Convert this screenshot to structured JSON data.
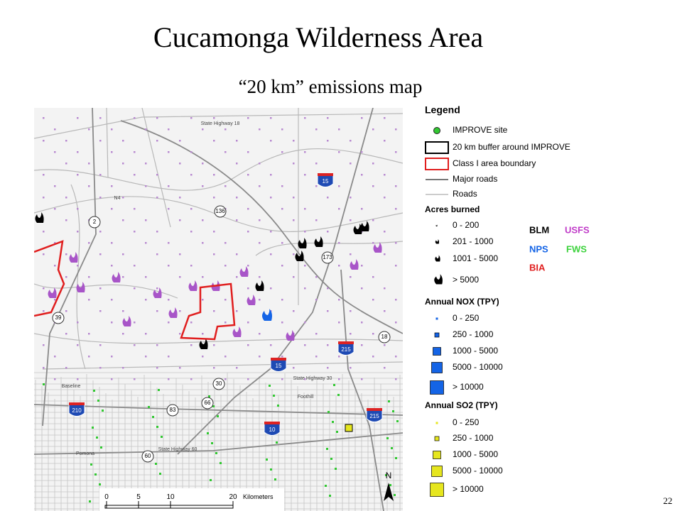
{
  "header": {
    "title": "Cucamonga Wilderness Area",
    "subtitle": "“20 km” emissions map"
  },
  "map": {
    "shields": [
      {
        "label": "15",
        "kind": "interstate"
      },
      {
        "label": "215",
        "kind": "interstate"
      },
      {
        "label": "15",
        "kind": "interstate"
      },
      {
        "label": "210",
        "kind": "interstate"
      },
      {
        "label": "10",
        "kind": "interstate"
      },
      {
        "label": "215",
        "kind": "interstate"
      },
      {
        "label": "136",
        "kind": "state"
      },
      {
        "label": "2",
        "kind": "state"
      },
      {
        "label": "173",
        "kind": "state"
      },
      {
        "label": "39",
        "kind": "state"
      },
      {
        "label": "18",
        "kind": "state"
      },
      {
        "label": "30",
        "kind": "state"
      },
      {
        "label": "66",
        "kind": "state"
      },
      {
        "label": "83",
        "kind": "state"
      },
      {
        "label": "60",
        "kind": "state"
      }
    ],
    "places": [
      "N4",
      "State Highway 18",
      "State Highway 30",
      "Baseline",
      "Foothill",
      "Pomona",
      "State Highway 60"
    ],
    "scale": {
      "ticks": [
        "0",
        "5",
        "10",
        "20"
      ],
      "unit": "Kilometers"
    },
    "north": "N"
  },
  "legend": {
    "title": "Legend",
    "items": [
      "IMPROVE site",
      "20 km buffer around IMPROVE",
      "Class I area boundary",
      "Major roads",
      "Roads"
    ],
    "acres": {
      "title": "Acres burned",
      "ranges": [
        "0 - 200",
        "201 - 1000",
        "1001 - 5000",
        "> 5000"
      ]
    },
    "agencies": [
      {
        "name": "BLM",
        "color": "#000000"
      },
      {
        "name": "USFS",
        "color": "#c03cc8"
      },
      {
        "name": "NPS",
        "color": "#1464e6"
      },
      {
        "name": "FWS",
        "color": "#3cd23c"
      },
      {
        "name": "BIA",
        "color": "#e01e1e"
      }
    ],
    "nox": {
      "title": "Annual NOX (TPY)",
      "color": "#1464e6",
      "ranges": [
        "0 - 250",
        "250 - 1000",
        "1000 - 5000",
        "5000 - 10000",
        "> 10000"
      ]
    },
    "so2": {
      "title": "Annual SO2 (TPY)",
      "color": "#e6e61e",
      "ranges": [
        "0 - 250",
        "250 - 1000",
        "1000 - 5000",
        "5000 - 10000",
        "> 10000"
      ]
    }
  },
  "footer": {
    "page": "22"
  }
}
